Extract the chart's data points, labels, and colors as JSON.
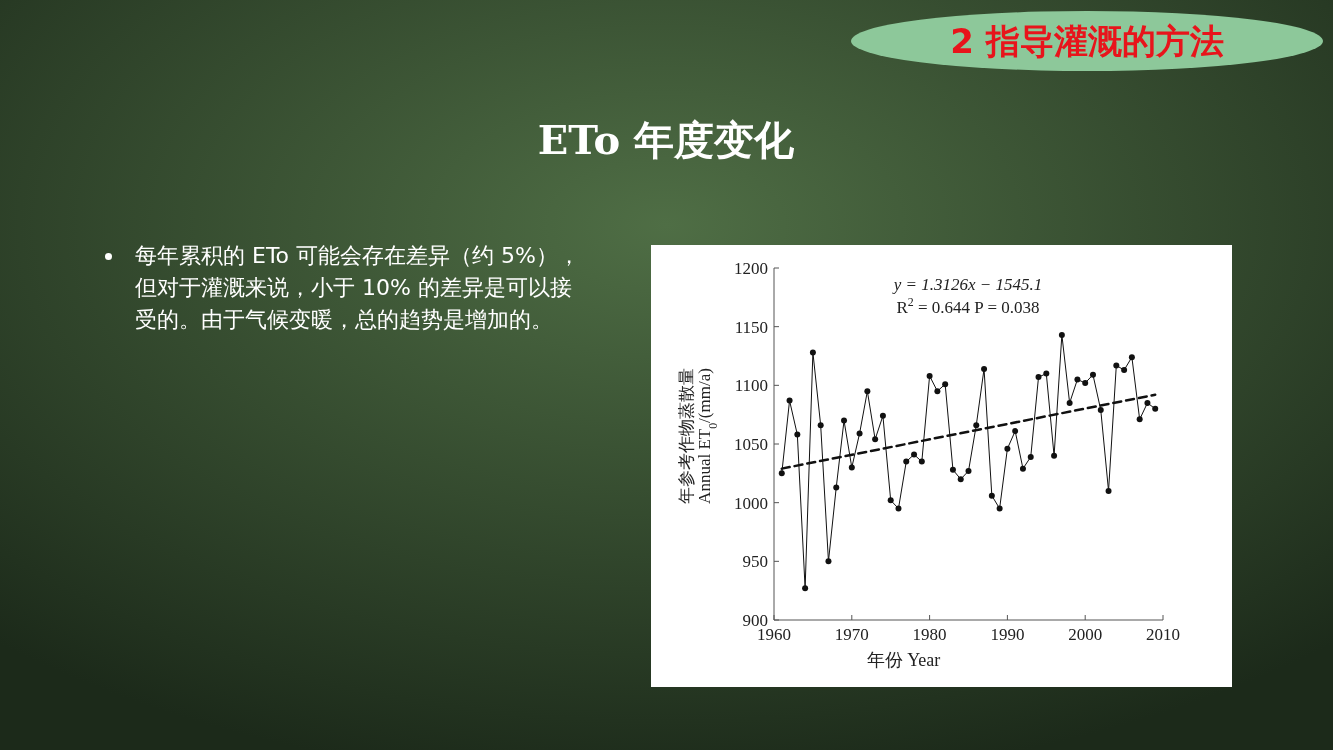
{
  "chart_data": {
    "type": "line",
    "title": "ETo 年度变化",
    "annotations": [
      "2 指导灌溉的方法",
      "每年累积的 ETo 可能会存在差异（约 5%），但对于灌溉来说，小于 10% 的差异是可以接受的。由于气候变暖，总的趋势是增加的。",
      "y = 1.3126x − 1545.1",
      "R$^{2}$ = 0.644     P = 0.038"
    ],
    "xlabel": "年份 Year",
    "ylabel": "年参考作物蒸散量\nAnnual ET$_{0}$/(mm/a)",
    "xlim": [
      1960,
      2010
    ],
    "xticks": [
      1960,
      1970,
      1980,
      1990,
      2000,
      2010
    ],
    "ylim": [
      900,
      1200
    ],
    "yticks": [
      900,
      950,
      1000,
      1050,
      1100,
      1150,
      1200
    ],
    "grid": false,
    "marker": "circle",
    "series": [
      {
        "color": "#111111",
        "line_style": "solid",
        "x": [
          1961,
          1962,
          1963,
          1964,
          1965,
          1966,
          1967,
          1968,
          1969,
          1970,
          1971,
          1972,
          1973,
          1974,
          1975,
          1976,
          1977,
          1978,
          1979,
          1980,
          1981,
          1982,
          1983,
          1984,
          1985,
          1986,
          1987,
          1988,
          1989,
          1990,
          1991,
          1992,
          1993,
          1994,
          1995,
          1996,
          1997,
          1998,
          1999,
          2000,
          2001,
          2002,
          2003,
          2004,
          2005,
          2006,
          2007,
          2008,
          2009
        ],
        "values": [
          1025,
          1087,
          1058,
          927,
          1128,
          1066,
          950,
          1013,
          1070,
          1030,
          1059,
          1095,
          1054,
          1074,
          1002,
          995,
          1035,
          1041,
          1035,
          1108,
          1095,
          1101,
          1028,
          1020,
          1027,
          1066,
          1114,
          1006,
          995,
          1046,
          1061,
          1029,
          1039,
          1107,
          1110,
          1040,
          1143,
          1085,
          1105,
          1102,
          1109,
          1079,
          1010,
          1117,
          1113,
          1124,
          1071,
          1085,
          1080
        ]
      },
      {
        "color": "#111111",
        "marker": "none",
        "line_style": "dashed",
        "x": [
          1961,
          2009
        ],
        "values": [
          1029,
          1092
        ]
      }
    ]
  }
}
